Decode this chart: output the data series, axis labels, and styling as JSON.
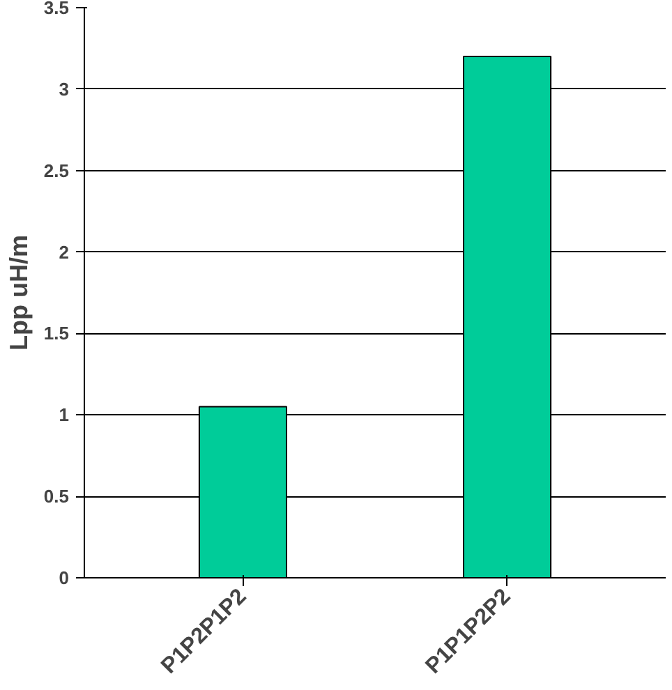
{
  "chart_data": {
    "type": "bar",
    "ylabel": "Lpp uH/m",
    "categories": [
      "P1P2P1P2",
      "P1P1P2P2"
    ],
    "values": [
      1.05,
      3.2
    ],
    "color": "#00cc99",
    "ylim": [
      0,
      3.5
    ],
    "yticks": [
      0,
      0.5,
      1,
      1.5,
      2,
      2.5,
      3,
      3.5
    ],
    "grid": "y"
  }
}
